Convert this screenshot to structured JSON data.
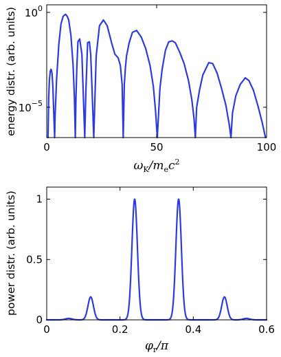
{
  "chart_data": [
    {
      "type": "line",
      "title": "",
      "ylabel": "energy distr. (arb. units)",
      "xlabel": "ω_K/m_e c^2",
      "xlim": [
        0,
        100
      ],
      "yscale": "log",
      "ylim_log10": [
        -6.6,
        0.4
      ],
      "xticks": [
        0,
        50,
        100
      ],
      "xtick_labels": [
        "0",
        "50",
        "100"
      ],
      "yticks_log10": [
        0,
        -5
      ],
      "ytick_base": "10",
      "ytick_exponents": [
        "0",
        "−5"
      ],
      "grid": false,
      "color": "#2b3be0",
      "series": [
        {
          "x": [
            0.6,
            0.9,
            1.2,
            1.6,
            2.0,
            2.4,
            2.8,
            3.2,
            3.6,
            3.8,
            4.5,
            5.5,
            6.5,
            7.5,
            8.5,
            9.3,
            10.0,
            11.0,
            12.0,
            12.6,
            13.0,
            13.3,
            13.7,
            14.2,
            15.0,
            16.0,
            16.6,
            17.3,
            17.8,
            18.6,
            19.4,
            20.0,
            20.6,
            21.4,
            22.5,
            24.0,
            25.8,
            27.5,
            29.5,
            31.0,
            32.5,
            33.5,
            34.3,
            34.8,
            35.3,
            35.8,
            36.3,
            37.5,
            39.0,
            40.9,
            43.0,
            45.0,
            47.0,
            48.5,
            49.5,
            50.3,
            50.9,
            51.5,
            52.5,
            54.0,
            55.5,
            57.1,
            58.5,
            60.5,
            62.5,
            64.5,
            66.0,
            67.0,
            67.6,
            68.2,
            69.5,
            71.0,
            73.7,
            75.5,
            77.5,
            79.5,
            81.5,
            83.0,
            83.8,
            84.5,
            86.0,
            88.0,
            90.3,
            92.0,
            94.0,
            96.0,
            98.0,
            99.5
          ],
          "log10y": [
            -6.6,
            -4.5,
            -3.6,
            -3.1,
            -3.0,
            -3.2,
            -3.9,
            -5.3,
            -6.6,
            -5.5,
            -3.5,
            -1.7,
            -0.6,
            -0.2,
            -0.1,
            -0.2,
            -0.4,
            -1.2,
            -2.8,
            -4.5,
            -6.6,
            -4.5,
            -2.9,
            -1.55,
            -1.4,
            -2.2,
            -4.2,
            -6.6,
            -4.2,
            -1.6,
            -1.55,
            -2.2,
            -4.0,
            -6.6,
            -2.3,
            -0.7,
            -0.4,
            -0.7,
            -1.6,
            -2.2,
            -2.4,
            -2.8,
            -3.8,
            -6.6,
            -3.8,
            -2.9,
            -2.3,
            -1.6,
            -1.05,
            -0.95,
            -1.3,
            -1.9,
            -2.8,
            -3.9,
            -5.2,
            -6.6,
            -5.3,
            -4.0,
            -3.0,
            -2.0,
            -1.55,
            -1.5,
            -1.6,
            -2.1,
            -2.7,
            -3.6,
            -4.6,
            -5.6,
            -6.6,
            -5.0,
            -4.1,
            -3.3,
            -2.65,
            -2.7,
            -3.2,
            -4.0,
            -4.9,
            -5.9,
            -6.6,
            -5.3,
            -4.4,
            -3.8,
            -3.45,
            -3.6,
            -4.1,
            -4.9,
            -5.8,
            -6.6
          ]
        }
      ]
    },
    {
      "type": "line",
      "title": "",
      "ylabel": "power distr. (arb. units)",
      "xlabel": "φ_r/π",
      "xlim": [
        0,
        0.6
      ],
      "ylim": [
        0,
        1.1
      ],
      "xticks": [
        0,
        0.2,
        0.4,
        0.6
      ],
      "xtick_labels": [
        "0",
        "0.2",
        "0.4",
        "0.6"
      ],
      "yticks": [
        0,
        0.5,
        1
      ],
      "ytick_labels": [
        "0",
        "0.5",
        "1"
      ],
      "grid": false,
      "color": "#2b3be0",
      "peaks": [
        {
          "center": 0.06,
          "height": 0.012,
          "width": 0.009
        },
        {
          "center": 0.12,
          "height": 0.19,
          "width": 0.0075
        },
        {
          "center": 0.24,
          "height": 1.0,
          "width": 0.0075
        },
        {
          "center": 0.36,
          "height": 1.0,
          "width": 0.0075
        },
        {
          "center": 0.485,
          "height": 0.19,
          "width": 0.0075
        },
        {
          "center": 0.545,
          "height": 0.012,
          "width": 0.009
        }
      ]
    }
  ]
}
